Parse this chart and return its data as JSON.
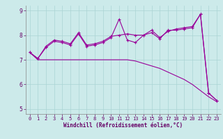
{
  "x": [
    0,
    1,
    2,
    3,
    4,
    5,
    6,
    7,
    8,
    9,
    10,
    11,
    12,
    13,
    14,
    15,
    16,
    17,
    18,
    19,
    20,
    21,
    22,
    23
  ],
  "line1": [
    7.3,
    7.05,
    7.55,
    7.8,
    7.75,
    7.65,
    8.1,
    7.6,
    7.65,
    7.75,
    7.95,
    8.0,
    8.05,
    8.0,
    8.0,
    8.2,
    7.9,
    8.15,
    8.25,
    8.3,
    8.35,
    8.85,
    5.65,
    5.35
  ],
  "line2": [
    7.3,
    7.05,
    7.5,
    7.75,
    7.7,
    7.6,
    8.05,
    7.55,
    7.6,
    7.7,
    7.9,
    8.65,
    7.8,
    7.7,
    8.0,
    8.1,
    7.85,
    8.2,
    8.2,
    8.25,
    8.3,
    8.85,
    5.65,
    5.35
  ],
  "line3": [
    7.3,
    7.0,
    7.0,
    7.0,
    7.0,
    7.0,
    7.0,
    7.0,
    7.0,
    7.0,
    7.0,
    7.0,
    7.0,
    6.95,
    6.85,
    6.75,
    6.65,
    6.5,
    6.35,
    6.2,
    6.0,
    5.75,
    5.5,
    5.3
  ],
  "bg_color": "#cceaea",
  "line_color": "#990099",
  "grid_color": "#aad4d4",
  "xlabel": "Windchill (Refroidissement éolien,°C)",
  "ylim": [
    4.8,
    9.2
  ],
  "xlim": [
    -0.5,
    23.5
  ],
  "yticks": [
    5,
    6,
    7,
    8,
    9
  ],
  "xticks": [
    0,
    1,
    2,
    3,
    4,
    5,
    6,
    7,
    8,
    9,
    10,
    11,
    12,
    13,
    14,
    15,
    16,
    17,
    18,
    19,
    20,
    21,
    22,
    23
  ],
  "tick_fontsize": 5.0,
  "xlabel_fontsize": 5.5,
  "lw": 0.8,
  "marker_size": 3.0
}
